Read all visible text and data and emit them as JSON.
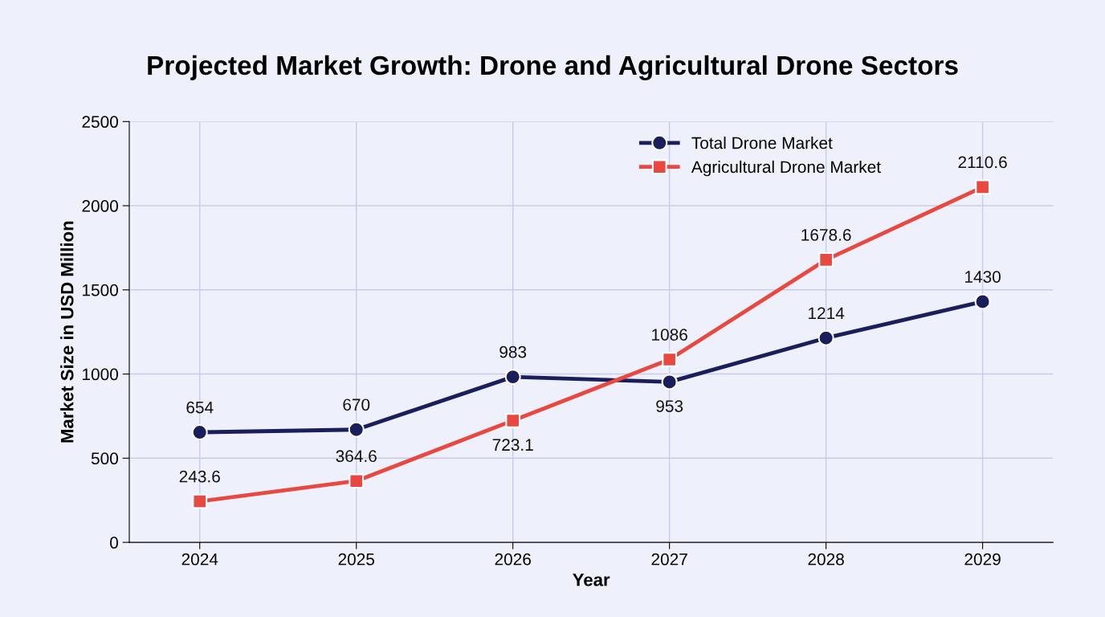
{
  "chart_data": {
    "type": "line",
    "title": "Projected Market Growth: Drone and Agricultural Drone Sectors",
    "xlabel": "Year",
    "ylabel": "Market Size in USD Million",
    "categories": [
      "2024",
      "2025",
      "2026",
      "2027",
      "2028",
      "2029"
    ],
    "series": [
      {
        "name": "Total Drone Market",
        "color": "#1a1f5c",
        "marker": "circle",
        "values": [
          654,
          670,
          983,
          953,
          1214,
          1430
        ]
      },
      {
        "name": "Agricultural Drone Market",
        "color": "#e8483f",
        "marker": "square",
        "values": [
          243.6,
          364.6,
          723.1,
          1086,
          1678.6,
          2110.6
        ]
      }
    ],
    "ylim": [
      0,
      2500
    ],
    "yticks": [
      0,
      500,
      1000,
      1500,
      2000,
      2500
    ],
    "grid": true,
    "legend": "top right",
    "line_style": "solid",
    "data_labels": true
  }
}
